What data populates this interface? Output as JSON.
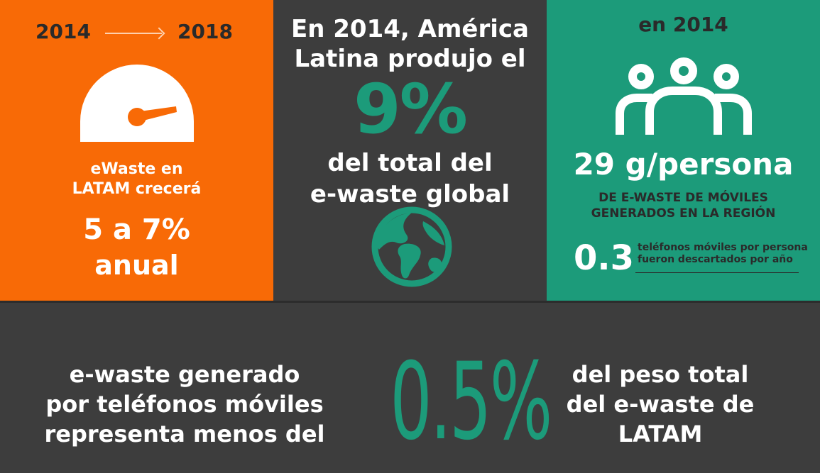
{
  "panel_growth": {
    "year_from": "2014",
    "year_to": "2018",
    "label_line1": "eWaste en",
    "label_line2": "LATAM crecerá",
    "percent": "5 a 7%",
    "period": "anual"
  },
  "panel_share": {
    "head_line1": "En 2014, América",
    "head_line2": "Latina produjo el",
    "big_value": "9%",
    "sub_line1": "del total del",
    "sub_line2": "e-waste global"
  },
  "panel_per_person": {
    "year": "en 2014",
    "big_value": "29 g/persona",
    "caption_line1": "DE E-WASTE DE MÓVILES",
    "caption_line2": "GENERADOS EN LA REGIÓN",
    "phones_value": "0.3",
    "phones_note_line1": "teléfonos móviles por persona",
    "phones_note_line2": "fueron descartados por año"
  },
  "bottom": {
    "left_line1": "e-waste generado",
    "left_line2": "por teléfonos móviles",
    "left_line3": "representa menos del",
    "big_value": "0.5%",
    "right_line1": "del peso total",
    "right_line2": "del e-waste de",
    "right_line3": "LATAM"
  },
  "colors": {
    "orange": "#f86a06",
    "gray": "#3d3d3d",
    "teal": "#1c9b7a"
  },
  "icons": {
    "gauge": "speedometer-icon",
    "globe": "globe-icon",
    "people": "people-group-icon"
  }
}
